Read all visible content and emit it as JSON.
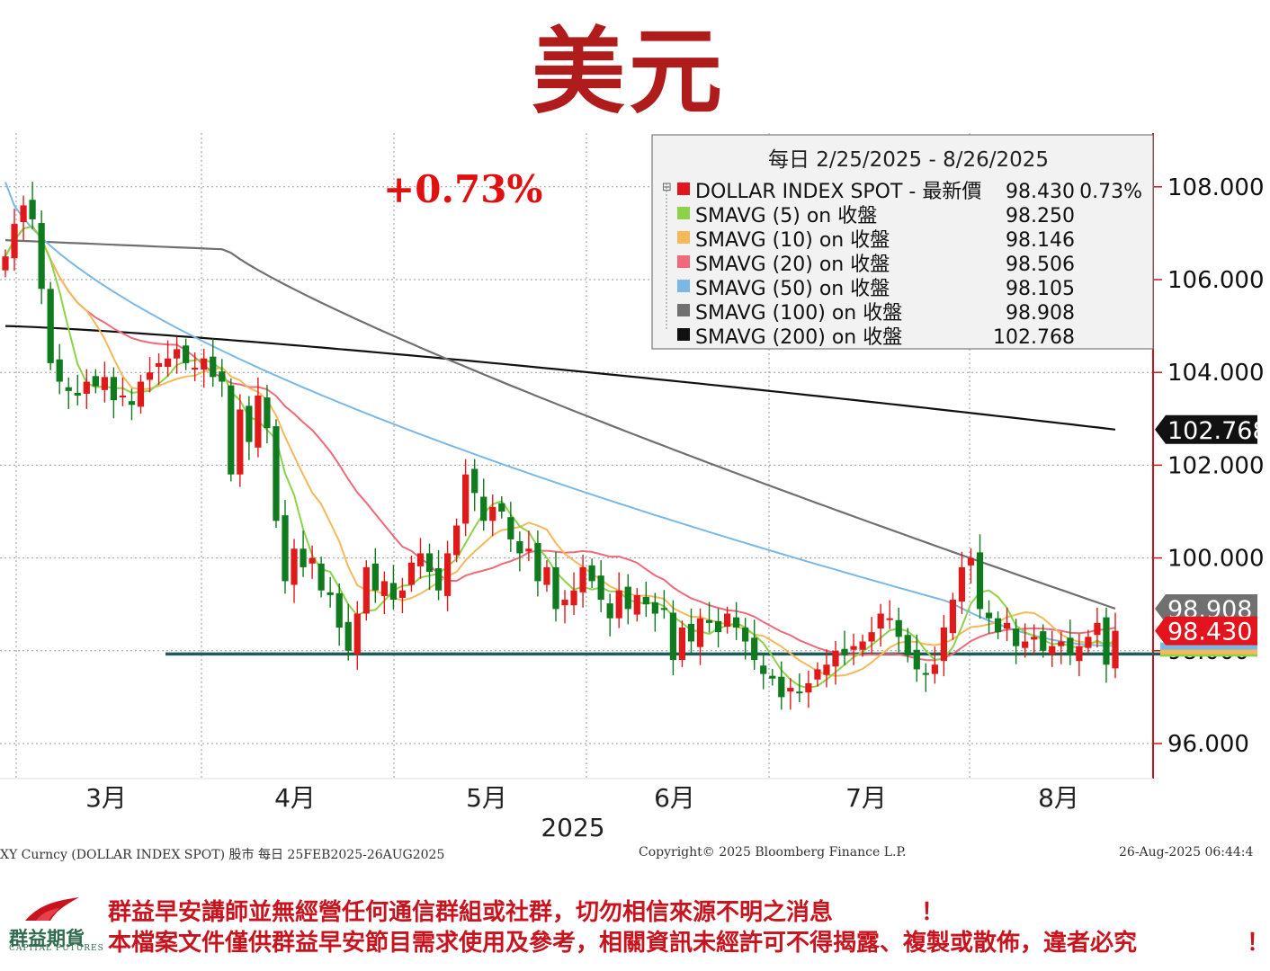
{
  "title": "美元",
  "change_text": "+0.73%",
  "legend": {
    "header": "每日 2/25/2025 - 8/26/2025",
    "rows": [
      {
        "label": "DOLLAR INDEX SPOT - 最新價",
        "value": "98.430",
        "extra": "0.73%",
        "color": "#e3141e"
      },
      {
        "label": "SMAVG (5)  on 收盤",
        "value": "98.250",
        "color": "#8cd34a"
      },
      {
        "label": "SMAVG (10)  on 收盤",
        "value": "98.146",
        "color": "#f5b85a"
      },
      {
        "label": "SMAVG (20)  on 收盤",
        "value": "98.506",
        "color": "#ee6a7a"
      },
      {
        "label": "SMAVG (50)  on 收盤",
        "value": "98.105",
        "color": "#7ab8e8"
      },
      {
        "label": "SMAVG (100)  on 收盤",
        "value": "98.908",
        "color": "#707070"
      },
      {
        "label": "SMAVG (200)  on 收盤",
        "value": "102.768",
        "color": "#111111"
      }
    ]
  },
  "badges": {
    "sma200": "102.768",
    "sma100": "98.908",
    "last": "98.430"
  },
  "chart_data": {
    "type": "candlestick",
    "title": "美元",
    "ylim": [
      95.4,
      109.6
    ],
    "y_ticks": [
      "96.000",
      "98.000",
      "100.000",
      "102.000",
      "104.000",
      "106.000",
      "108.000"
    ],
    "x_month_labels": [
      "3月",
      "4月",
      "5月",
      "6月",
      "7月",
      "8月"
    ],
    "x_year_label": "2025",
    "support_level": 97.93,
    "closes": [
      106.5,
      107.2,
      107.6,
      107.3,
      105.8,
      104.2,
      103.8,
      103.6,
      103.5,
      103.8,
      103.7,
      103.9,
      103.4,
      103.5,
      103.3,
      103.8,
      104.0,
      104.2,
      104.3,
      104.5,
      104.2,
      104.1,
      104.3,
      103.9,
      103.8,
      101.8,
      103.2,
      102.5,
      103.5,
      102.8,
      100.8,
      99.5,
      100.2,
      99.8,
      100.0,
      99.3,
      99.2,
      98.5,
      98.0,
      98.8,
      99.8,
      99.3,
      99.5,
      99.1,
      99.3,
      99.9,
      100.1,
      99.7,
      99.3,
      100.1,
      100.7,
      101.8,
      101.4,
      100.8,
      101.1,
      101.0,
      100.4,
      100.1,
      100.2,
      99.5,
      99.8,
      98.9,
      99.1,
      99.3,
      99.8,
      99.5,
      99.1,
      98.7,
      99.3,
      98.9,
      99.2,
      99.0,
      98.8,
      98.9,
      97.8,
      98.5,
      98.2,
      98.7,
      98.6,
      98.4,
      98.8,
      98.5,
      98.2,
      97.8,
      97.5,
      97.4,
      97.0,
      97.2,
      97.1,
      97.3,
      97.6,
      97.7,
      98.0,
      97.9,
      98.1,
      98.2,
      98.4,
      98.8,
      98.7,
      98.3,
      97.9,
      97.6,
      97.5,
      97.7,
      98.5,
      99.1,
      99.8,
      100.0,
      98.9,
      98.7,
      98.4,
      98.6,
      98.1,
      98.2,
      98.3,
      98.0,
      98.1,
      98.2,
      97.9,
      98.1,
      98.3,
      98.6,
      97.7,
      98.43
    ],
    "series": [
      {
        "name": "DOLLAR INDEX SPOT",
        "last": 98.43
      },
      {
        "name": "SMAVG (5)",
        "last": 98.25
      },
      {
        "name": "SMAVG (10)",
        "last": 98.146
      },
      {
        "name": "SMAVG (20)",
        "last": 98.506
      },
      {
        "name": "SMAVG (50)",
        "last": 98.105
      },
      {
        "name": "SMAVG (100)",
        "last": 98.908
      },
      {
        "name": "SMAVG (200)",
        "last": 102.768
      }
    ],
    "grid": true,
    "legend_position": "top-right"
  },
  "footer": {
    "left": "XY Curncy (DOLLAR INDEX SPOT) 股市  每日 25FEB2025-26AUG2025",
    "middle": "Copyright© 2025 Bloomberg Finance L.P.",
    "right": "26-Aug-2025 06:44:4"
  },
  "disclaimer": {
    "line1": "群益早安講師並無經營任何通信群組或社群，切勿相信來源不明之消息",
    "line2": "本檔案文件僅供群益早安節目需求使用及參考，相關資訊未經許可不得揭露、複製或散佈，違者必究",
    "excl": "！"
  },
  "logo": {
    "name": "群益期貨",
    "sub": "CAPITAL FUTURES"
  }
}
